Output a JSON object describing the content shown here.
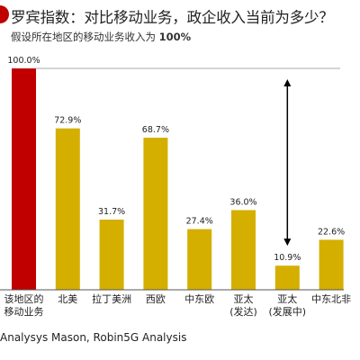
{
  "title": "罗宾指数：对比移动业务，政企收入当前为多少？",
  "subtitle_text": "假设所在地区的移动业务收入为",
  "subtitle_value": "100%",
  "source": "Analysys Mason, Robin5G Analysis",
  "colors": {
    "reference": "#c00000",
    "bars": "#d4af00",
    "accent": "#c00000",
    "reference_line": "#aaaaaa",
    "arrow": "#000000",
    "baseline": "#555555"
  },
  "chart_data": {
    "type": "bar",
    "categories": [
      [
        "该地区的",
        "移动业务"
      ],
      [
        "北美"
      ],
      [
        "拉丁美洲"
      ],
      [
        "西欧"
      ],
      [
        "中东欧"
      ],
      [
        "亚太",
        "(发达)"
      ],
      [
        "亚太",
        "(发展中)"
      ],
      [
        "中东北非"
      ]
    ],
    "values": [
      100.0,
      72.9,
      31.7,
      68.7,
      27.4,
      36.0,
      10.9,
      22.6
    ],
    "value_labels": [
      "100.0%",
      "72.9%",
      "31.7%",
      "68.7%",
      "27.4%",
      "36.0%",
      "10.9%",
      "22.6%"
    ],
    "ylim": [
      0,
      100
    ],
    "reference_line": 100.0,
    "range_arrow": {
      "category_index": 6,
      "from": 10.9,
      "to": 100.0
    },
    "grid": false,
    "legend": "none"
  }
}
